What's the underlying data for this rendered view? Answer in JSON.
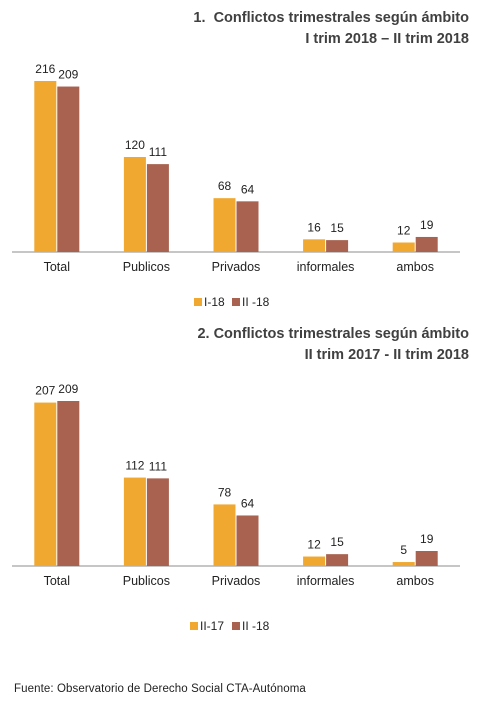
{
  "chart_data": [
    {
      "type": "bar",
      "title": "1.  Conflictos trimestrales según ámbito",
      "subtitle": "I trim 2018 – II trim 2018",
      "categories": [
        "Total",
        "Publicos",
        "Privados",
        "informales",
        "ambos"
      ],
      "series": [
        {
          "name": "I-18",
          "values": [
            216,
            120,
            68,
            16,
            12
          ]
        },
        {
          "name": "II -18",
          "values": [
            209,
            111,
            64,
            15,
            19
          ]
        }
      ],
      "xlabel": "",
      "ylabel": "",
      "ylim": [
        0,
        216
      ],
      "grid": false,
      "legend": "bottom-center",
      "data_labels": true
    },
    {
      "type": "bar",
      "title": "2. Conflictos trimestrales según ámbito",
      "subtitle": "II trim 2017 - II trim 2018",
      "categories": [
        "Total",
        "Publicos",
        "Privados",
        "informales",
        "ambos"
      ],
      "series": [
        {
          "name": "II-17",
          "values": [
            207,
            112,
            78,
            12,
            5
          ]
        },
        {
          "name": "II -18",
          "values": [
            209,
            111,
            64,
            15,
            19
          ]
        }
      ],
      "xlabel": "",
      "ylabel": "",
      "ylim": [
        0,
        209
      ],
      "grid": false,
      "legend": "bottom-center",
      "data_labels": true
    }
  ],
  "colors": {
    "series_a": "#F0A830",
    "series_b": "#A8624F",
    "axis": "#8c8c8c"
  },
  "source": "Fuente: Observatorio de Derecho Social CTA-Autónoma"
}
